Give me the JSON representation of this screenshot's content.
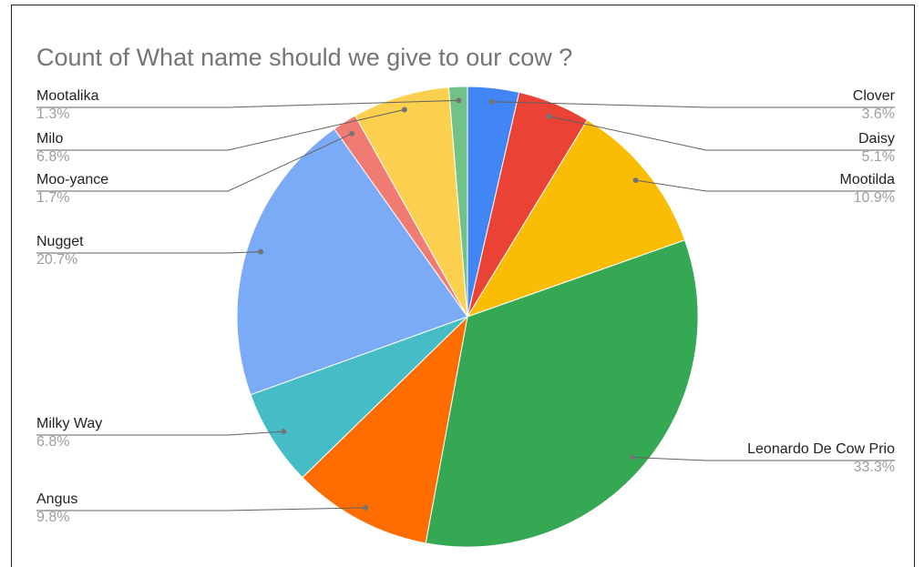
{
  "chart_data": {
    "type": "pie",
    "title": "Count of What name should we give to our cow ?",
    "categories": [
      "Clover",
      "Daisy",
      "Mootilda",
      "Leonardo De Cow Prio",
      "Angus",
      "Milky Way",
      "Nugget",
      "Moo-yance",
      "Milo",
      "Mootalika"
    ],
    "values": [
      3.6,
      5.1,
      10.9,
      33.3,
      9.8,
      6.8,
      20.7,
      1.7,
      6.8,
      1.3
    ],
    "value_labels": [
      "3.6%",
      "5.1%",
      "10.9%",
      "33.3%",
      "9.8%",
      "6.8%",
      "20.7%",
      "1.7%",
      "6.8%",
      "1.3%"
    ],
    "colors": [
      "#4285f4",
      "#ea4335",
      "#fbbc04",
      "#34a853",
      "#ff6d01",
      "#46bdc6",
      "#7baaf7",
      "#f07b72",
      "#fcd04f",
      "#71c287"
    ]
  }
}
